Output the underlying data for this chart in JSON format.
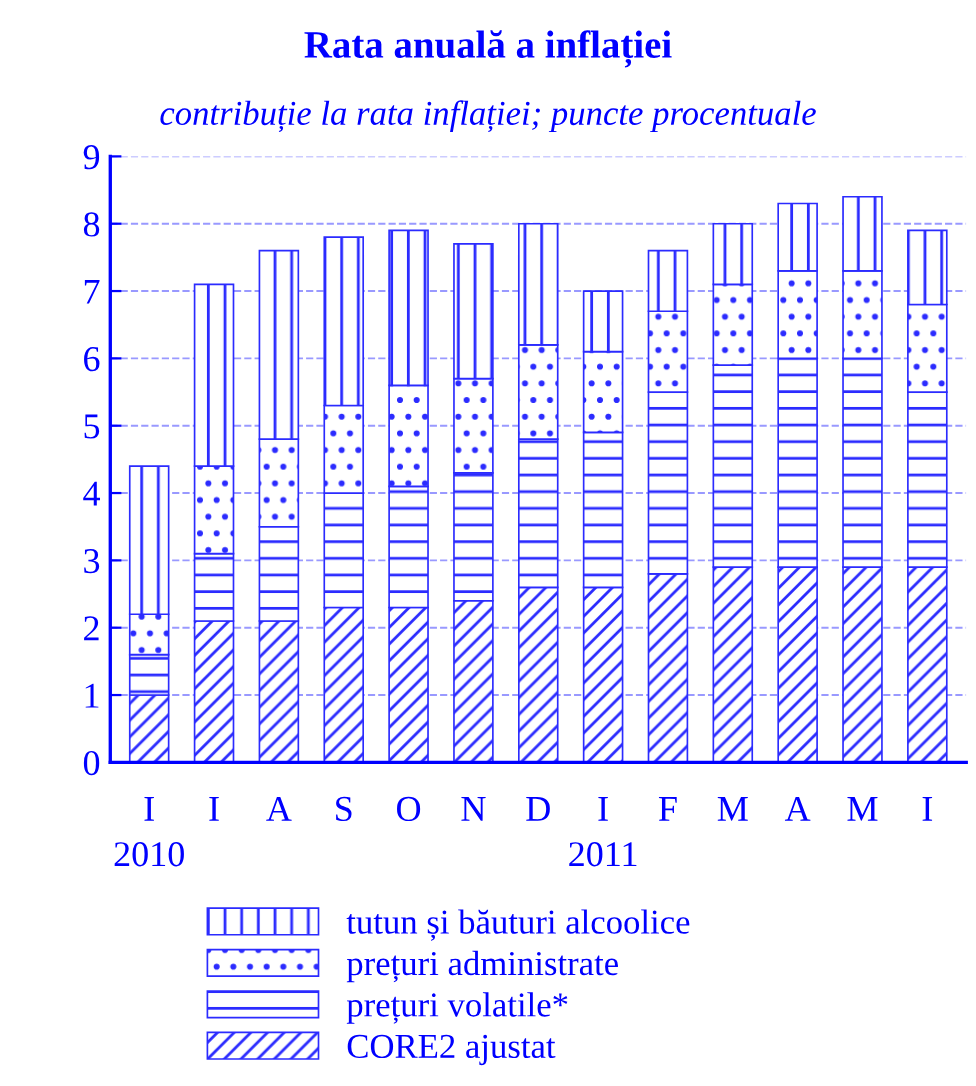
{
  "chart_data": {
    "type": "bar",
    "stacked": true,
    "title": "Rata anuală a inflației",
    "subtitle": "contribuție la rata inflației; puncte procentuale",
    "categories": [
      "I\n2010",
      "I",
      "A",
      "S",
      "O",
      "N",
      "D",
      "I\n2011",
      "F",
      "M",
      "A",
      "M",
      "I"
    ],
    "series": [
      {
        "name": "CORE2 ajustat",
        "color": "#2b2bff",
        "values": [
          1.0,
          2.1,
          2.1,
          2.3,
          2.3,
          2.4,
          2.6,
          2.6,
          2.8,
          2.9,
          2.9,
          2.9,
          2.9
        ]
      },
      {
        "name": "prețuri volatile*",
        "color": "#2b2bff",
        "values": [
          0.6,
          1.0,
          1.4,
          1.7,
          1.8,
          1.9,
          2.2,
          2.3,
          2.7,
          3.0,
          3.1,
          3.1,
          2.6
        ]
      },
      {
        "name": "prețuri administrate",
        "color": "#2b2bff",
        "values": [
          0.6,
          1.3,
          1.3,
          1.3,
          1.5,
          1.4,
          1.4,
          1.2,
          1.2,
          1.2,
          1.3,
          1.3,
          1.3
        ]
      },
      {
        "name": "tutun și băuturi alcoolice",
        "color": "#2b2bff",
        "values": [
          2.2,
          2.7,
          2.8,
          2.5,
          2.3,
          2.0,
          1.8,
          0.9,
          0.9,
          0.9,
          1.0,
          1.1,
          1.1
        ]
      }
    ],
    "ylim": [
      0,
      9
    ],
    "yticks": [
      0,
      1,
      2,
      3,
      4,
      5,
      6,
      7,
      8,
      9
    ],
    "grid": "y",
    "legend": "bottom"
  }
}
